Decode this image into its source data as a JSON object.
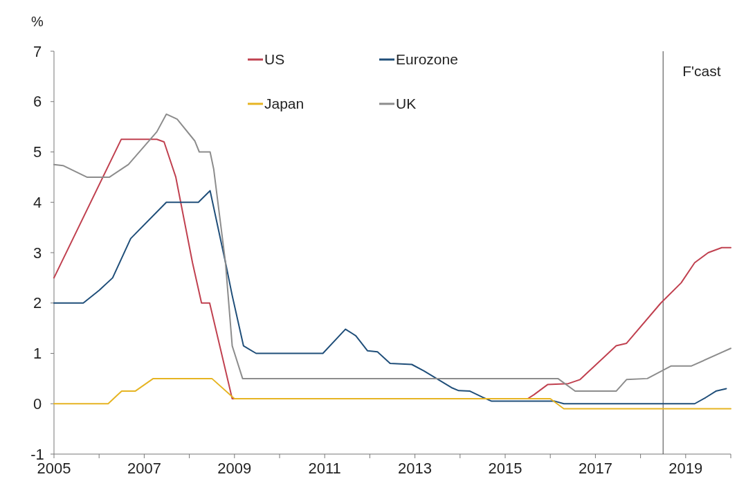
{
  "chart_data": {
    "type": "line",
    "ylabel": "%",
    "xlim": [
      2005,
      2020
    ],
    "xticks": [
      2005,
      2007,
      2009,
      2011,
      2013,
      2015,
      2017,
      2019
    ],
    "ylim": [
      -1,
      7
    ],
    "yticks": [
      -1,
      0,
      1,
      2,
      3,
      4,
      5,
      6,
      7
    ],
    "grid": false,
    "legend": "top",
    "line_style": "solid",
    "marker": "none",
    "ref_lines": [
      {
        "axis": "x",
        "value": 2018.5,
        "label": "F'cast",
        "color": "#404040"
      }
    ],
    "series": [
      {
        "name": "US",
        "color": "#c0404f",
        "x": [
          2005,
          2006.49,
          2007.28,
          2007.44,
          2007.7,
          2008.07,
          2008.27,
          2008.45,
          2008.95,
          2015.5,
          2015.64,
          2015.94,
          2016.4,
          2016.66,
          2017.46,
          2017.69,
          2018.45,
          2018.9,
          2019.2,
          2019.5,
          2019.8,
          2020
        ],
        "values": [
          2.5,
          5.25,
          5.25,
          5.2,
          4.5,
          2.8,
          2.0,
          2.0,
          0.1,
          0.1,
          0.18,
          0.38,
          0.4,
          0.48,
          1.15,
          1.2,
          2.0,
          2.4,
          2.8,
          3.0,
          3.1,
          3.1
        ]
      },
      {
        "name": "Eurozone",
        "color": "#1f4e79",
        "x": [
          2005,
          2005.65,
          2006.0,
          2006.3,
          2006.7,
          2007.49,
          2008.2,
          2008.46,
          2008.8,
          2008.95,
          2009.2,
          2009.48,
          2010.96,
          2011.46,
          2011.69,
          2011.95,
          2012.17,
          2012.45,
          2012.93,
          2013.2,
          2013.81,
          2013.97,
          2014.22,
          2014.5,
          2014.7,
          2016.1,
          2016.3,
          2019.2,
          2019.44,
          2019.67,
          2019.9
        ],
        "values": [
          2.0,
          2.0,
          2.25,
          2.5,
          3.28,
          4.0,
          4.0,
          4.23,
          2.81,
          2.15,
          1.15,
          1.0,
          1.0,
          1.48,
          1.35,
          1.05,
          1.03,
          0.8,
          0.78,
          0.65,
          0.32,
          0.26,
          0.25,
          0.13,
          0.05,
          0.05,
          0.0,
          0.0,
          0.12,
          0.25,
          0.3
        ]
      },
      {
        "name": "Japan",
        "color": "#e6b422",
        "x": [
          2005,
          2006.2,
          2006.5,
          2006.8,
          2007.2,
          2008.5,
          2009,
          2016,
          2016.3,
          2020
        ],
        "values": [
          0,
          0,
          0.25,
          0.25,
          0.5,
          0.5,
          0.1,
          0.1,
          -0.1,
          -0.1
        ]
      },
      {
        "name": "UK",
        "color": "#8c8c8c",
        "x": [
          2005,
          2005.2,
          2005.73,
          2006.23,
          2006.65,
          2006.97,
          2007.28,
          2007.49,
          2007.73,
          2008.12,
          2008.22,
          2008.46,
          2008.54,
          2008.8,
          2008.95,
          2009.18,
          2016.17,
          2016.55,
          2017.46,
          2017.69,
          2018.15,
          2018.68,
          2019.13,
          2020
        ],
        "values": [
          4.75,
          4.73,
          4.5,
          4.5,
          4.75,
          5.08,
          5.4,
          5.75,
          5.65,
          5.22,
          5.0,
          5.0,
          4.66,
          2.81,
          1.15,
          0.5,
          0.5,
          0.25,
          0.25,
          0.48,
          0.5,
          0.75,
          0.75,
          1.1
        ]
      }
    ]
  }
}
